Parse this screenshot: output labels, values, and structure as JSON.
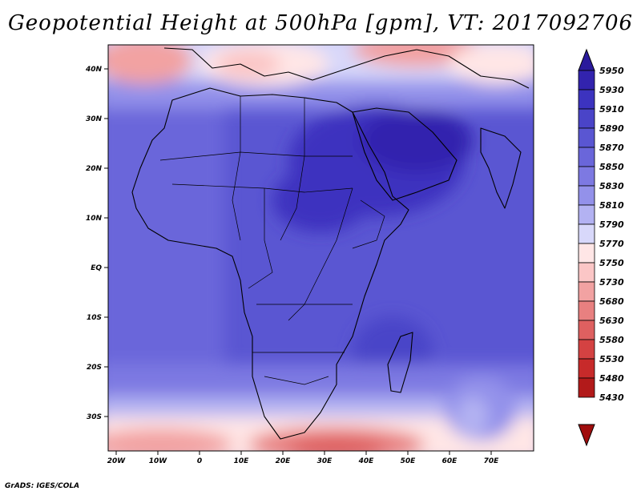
{
  "title": "Geopotential Height at 500hPa [gpm], VT: 2017092706",
  "credit": "GrADS: IGES/COLA",
  "map": {
    "lon_ticks": [
      "20W",
      "10W",
      "0",
      "10E",
      "20E",
      "30E",
      "40E",
      "50E",
      "60E",
      "70E"
    ],
    "lat_ticks": [
      "40N",
      "30N",
      "20N",
      "10N",
      "EQ",
      "10S",
      "20S",
      "30S"
    ]
  },
  "colorbar": {
    "levels": [
      "5950",
      "5930",
      "5910",
      "5890",
      "5870",
      "5850",
      "5830",
      "5810",
      "5790",
      "5770",
      "5750",
      "5730",
      "5680",
      "5630",
      "5580",
      "5530",
      "5480",
      "5430"
    ],
    "colors": [
      "#2a1a9c",
      "#3223ae",
      "#3c33bf",
      "#4a44c8",
      "#5a56d2",
      "#6a66da",
      "#7d79e2",
      "#9391ea",
      "#b3b2f2",
      "#d8d8fa",
      "#ffe6e6",
      "#fbc6c6",
      "#f2a2a2",
      "#e88080",
      "#de6060",
      "#d44242",
      "#c72a2a",
      "#b21a1a",
      "#a00d0d"
    ]
  }
}
